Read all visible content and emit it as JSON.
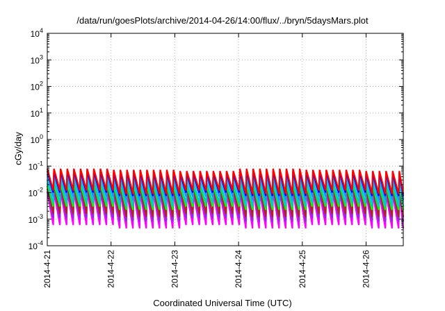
{
  "chart_data": {
    "type": "line",
    "title": "/data/run/goesPlots/archive/2014-04-26/14:00/flux/../bryn/5daysMars.plot",
    "xlabel": "Coordinated Universal Time (UTC)",
    "ylabel": "cGy/day",
    "y_scale": "log",
    "ylim": [
      0.0001,
      10000
    ],
    "xlim": [
      "2014-04-21",
      "2014-04-26 14:00"
    ],
    "grid": true,
    "legend": "none",
    "y_ticks": [
      {
        "value": 0.0001,
        "base": "10",
        "exp": "-4"
      },
      {
        "value": 0.001,
        "base": "10",
        "exp": "-3"
      },
      {
        "value": 0.01,
        "base": "10",
        "exp": "-2"
      },
      {
        "value": 0.1,
        "base": "10",
        "exp": "-1"
      },
      {
        "value": 1,
        "base": "10",
        "exp": "0"
      },
      {
        "value": 10,
        "base": "10",
        "exp": "1"
      },
      {
        "value": 100,
        "base": "10",
        "exp": "2"
      },
      {
        "value": 1000,
        "base": "10",
        "exp": "3"
      },
      {
        "value": 10000,
        "base": "10",
        "exp": "4"
      }
    ],
    "x_ticks": [
      {
        "value": "2014-04-21",
        "label": "2014-4-21"
      },
      {
        "value": "2014-04-22",
        "label": "2014-4-22"
      },
      {
        "value": "2014-04-23",
        "label": "2014-4-23"
      },
      {
        "value": "2014-04-24",
        "label": "2014-4-24"
      },
      {
        "value": "2014-04-25",
        "label": "2014-4-25"
      },
      {
        "value": "2014-04-26",
        "label": "2014-4-26"
      }
    ],
    "series_pattern": {
      "period_hours": 2.5,
      "start": "2014-04-21",
      "end": "2014-04-26 14:00"
    },
    "series": [
      {
        "color": "#ff0000",
        "peak": 0.08,
        "trough": 0.012
      },
      {
        "color": "#0000ff",
        "peak": 0.065,
        "trough": 0.01
      },
      {
        "color": "#1e90ff",
        "peak": 0.05,
        "trough": 0.007
      },
      {
        "color": "#00cccc",
        "peak": 0.03,
        "trough": 0.004
      },
      {
        "color": "#00ff00",
        "peak": 0.022,
        "trough": 0.003
      },
      {
        "color": "#b22222",
        "peak": 0.018,
        "trough": 0.0016
      },
      {
        "color": "#8a2be2",
        "peak": 0.014,
        "trough": 0.0011
      },
      {
        "color": "#ff00ff",
        "peak": 0.011,
        "trough": 0.0006
      }
    ]
  }
}
